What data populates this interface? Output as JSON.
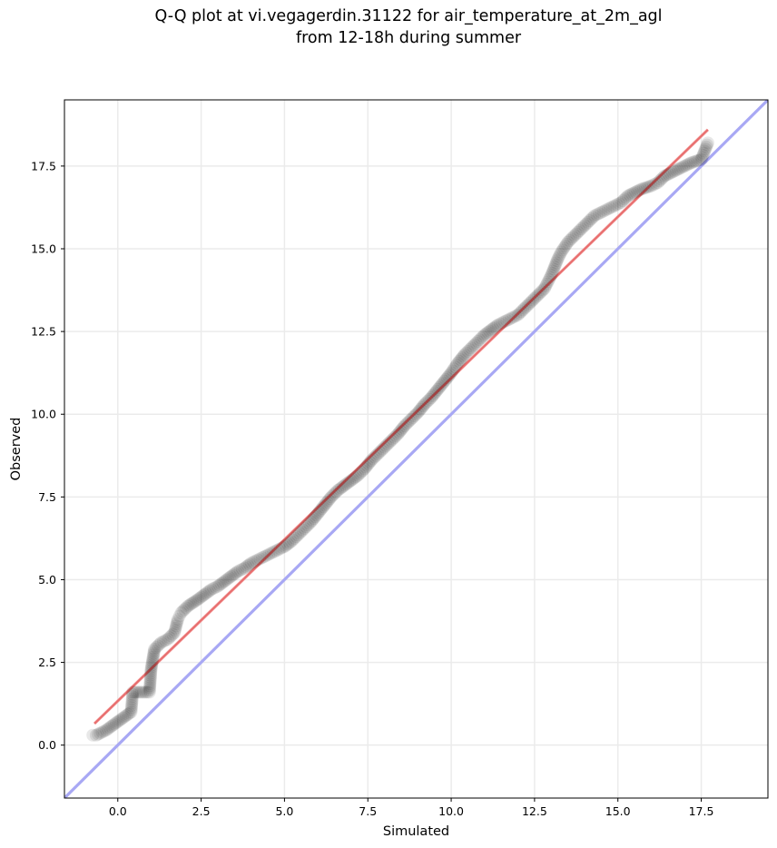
{
  "chart_data": {
    "type": "scatter",
    "title_lines": [
      "Q-Q plot at vi.vegagerdin.31122 for air_temperature_at_2m_agl",
      "from 12-18h during summer"
    ],
    "xlabel": "Simulated",
    "ylabel": "Observed",
    "xlim": [
      -1.6,
      19.5
    ],
    "ylim": [
      -1.6,
      19.5
    ],
    "xticks": [
      0.0,
      2.5,
      5.0,
      7.5,
      10.0,
      12.5,
      15.0,
      17.5
    ],
    "yticks": [
      0.0,
      2.5,
      5.0,
      7.5,
      10.0,
      12.5,
      15.0,
      17.5
    ],
    "xtick_labels": [
      "0.0",
      "2.5",
      "5.0",
      "7.5",
      "10.0",
      "12.5",
      "15.0",
      "17.5"
    ],
    "ytick_labels": [
      "0.0",
      "2.5",
      "5.0",
      "7.5",
      "10.0",
      "12.5",
      "15.0",
      "17.5"
    ],
    "grid": true,
    "series": [
      {
        "kind": "points",
        "color": "#000000",
        "opacity": 0.09,
        "x": [
          -0.75,
          -0.65,
          -0.35,
          -0.15,
          0.4,
          0.45,
          0.95,
          1.0,
          1.1,
          1.3,
          1.5,
          1.6,
          1.7,
          1.75,
          1.8,
          1.85,
          1.9,
          2.0,
          2.1,
          2.25,
          2.4,
          2.6,
          2.8,
          3.0,
          3.2,
          3.4,
          3.6,
          3.8,
          4.0,
          4.2,
          4.4,
          4.6,
          4.8,
          5.0,
          5.2,
          5.4,
          5.6,
          5.8,
          6.0,
          6.2,
          6.4,
          6.6,
          6.8,
          7.0,
          7.2,
          7.4,
          7.6,
          7.8,
          8.0,
          8.2,
          8.4,
          8.6,
          8.8,
          9.0,
          9.2,
          9.4,
          9.6,
          9.8,
          10.0,
          10.2,
          10.4,
          10.6,
          10.8,
          11.0,
          11.2,
          11.4,
          11.6,
          11.8,
          12.0,
          12.2,
          12.4,
          12.6,
          12.8,
          12.9,
          13.0,
          13.1,
          13.2,
          13.3,
          13.5,
          13.7,
          13.9,
          14.1,
          14.3,
          14.5,
          14.7,
          14.9,
          15.1,
          15.3,
          15.7,
          16.0,
          16.2,
          16.4,
          17.2,
          17.5,
          17.7
        ],
        "y": [
          0.3,
          0.3,
          0.45,
          0.6,
          1.0,
          1.6,
          1.6,
          2.3,
          2.9,
          3.1,
          3.2,
          3.3,
          3.4,
          3.6,
          3.8,
          3.9,
          4.0,
          4.1,
          4.2,
          4.3,
          4.4,
          4.55,
          4.7,
          4.8,
          4.95,
          5.1,
          5.25,
          5.35,
          5.5,
          5.6,
          5.7,
          5.8,
          5.9,
          6.0,
          6.15,
          6.35,
          6.55,
          6.75,
          7.0,
          7.25,
          7.5,
          7.7,
          7.85,
          8.0,
          8.15,
          8.35,
          8.6,
          8.8,
          9.0,
          9.2,
          9.4,
          9.65,
          9.85,
          10.05,
          10.3,
          10.5,
          10.75,
          11.0,
          11.25,
          11.55,
          11.8,
          12.0,
          12.2,
          12.4,
          12.55,
          12.7,
          12.8,
          12.9,
          13.0,
          13.2,
          13.4,
          13.6,
          13.8,
          14.0,
          14.2,
          14.45,
          14.7,
          14.9,
          15.2,
          15.4,
          15.6,
          15.8,
          16.0,
          16.1,
          16.2,
          16.3,
          16.4,
          16.6,
          16.8,
          16.9,
          17.0,
          17.2,
          17.6,
          17.7,
          18.2
        ]
      },
      {
        "kind": "line",
        "color": "#f4a0a0",
        "x": [
          -0.7,
          17.7
        ],
        "y": [
          0.65,
          18.6
        ]
      },
      {
        "kind": "line",
        "color": "#a8a8f4",
        "x": [
          -1.6,
          19.5
        ],
        "y": [
          -1.6,
          19.5
        ]
      }
    ]
  }
}
